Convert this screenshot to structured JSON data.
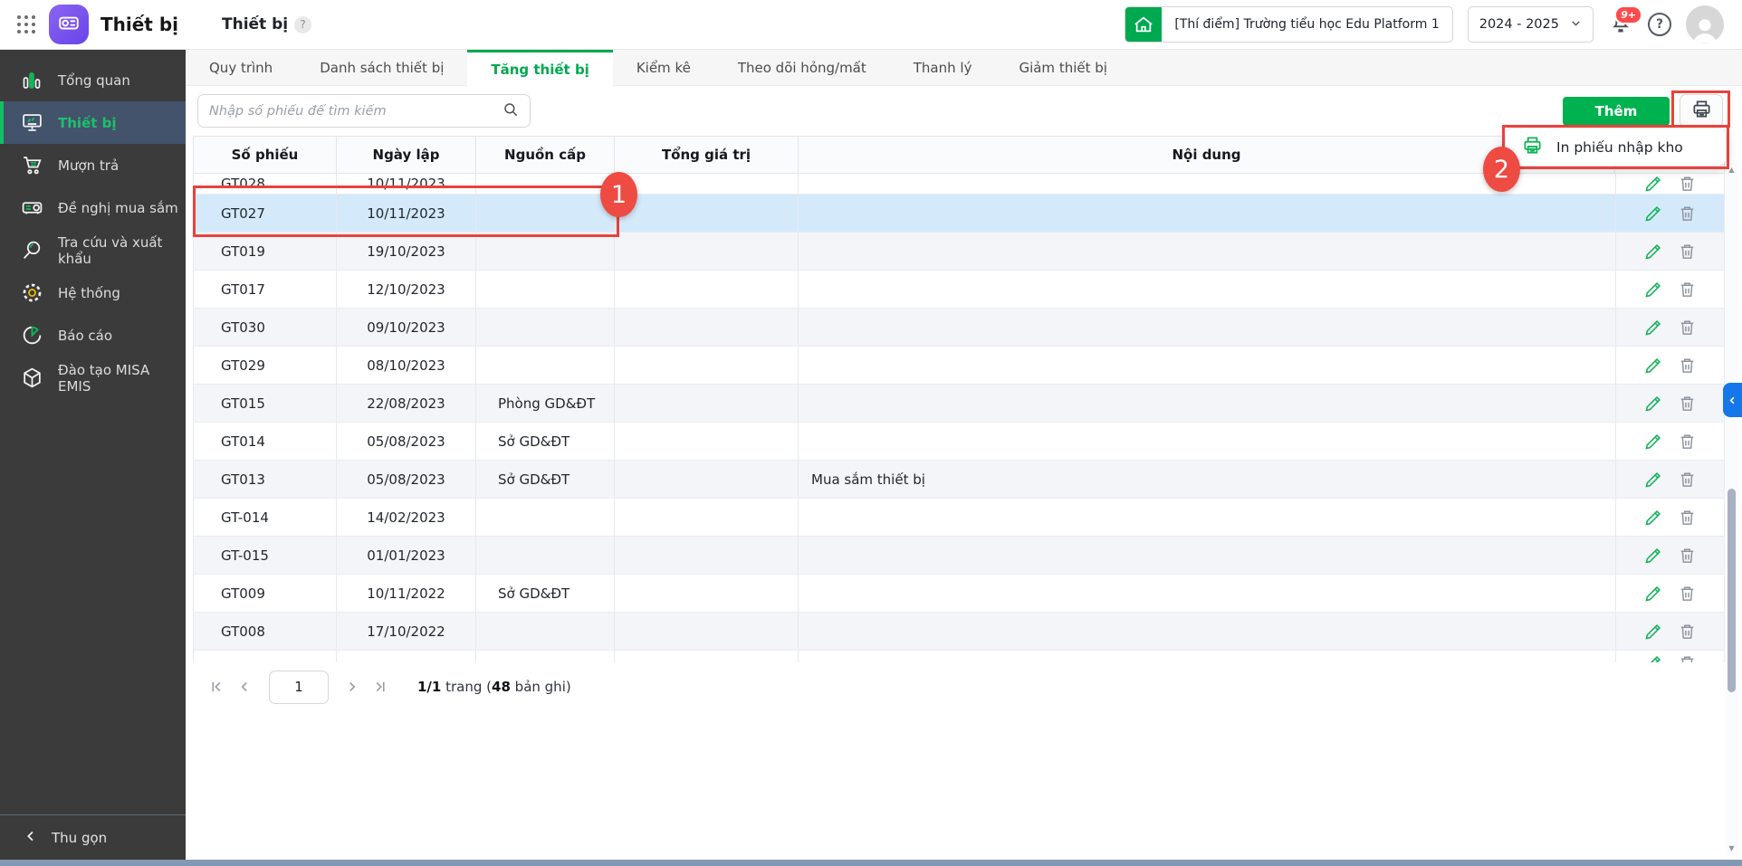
{
  "header": {
    "app_title": "Thiết bị",
    "page_title": "Thiết bị",
    "help_badge": "?",
    "school": "[Thí điểm] Trường tiểu học Edu Platform 1",
    "school_year": "2024 - 2025",
    "notification_badge": "9+",
    "help_icon_glyph": "?"
  },
  "sidebar": {
    "items": [
      {
        "label": "Tổng quan",
        "icon": "bar-chart-icon"
      },
      {
        "label": "Thiết bị",
        "icon": "monitor-icon"
      },
      {
        "label": "Mượn trả",
        "icon": "cart-icon"
      },
      {
        "label": "Đề nghị mua sắm",
        "icon": "projector-icon"
      },
      {
        "label": "Tra cứu và xuất khẩu",
        "icon": "magnifier-icon"
      },
      {
        "label": "Hệ thống",
        "icon": "gear-icon"
      },
      {
        "label": "Báo cáo",
        "icon": "pie-chart-icon"
      },
      {
        "label": "Đào tạo MISA EMIS",
        "icon": "cube-icon"
      }
    ],
    "active_item": "Thiết bị",
    "collapse_label": "Thu gọn"
  },
  "tabs": {
    "items": [
      "Quy trình",
      "Danh sách thiết bị",
      "Tăng thiết bị",
      "Kiểm kê",
      "Theo dõi hỏng/mất",
      "Thanh lý",
      "Giảm thiết bị"
    ],
    "active": "Tăng thiết bị"
  },
  "toolbar": {
    "search_placeholder": "Nhập số phiếu để tìm kiếm",
    "add_label": "Thêm",
    "print_menu_label": "In phiếu nhập kho"
  },
  "table": {
    "columns": [
      "Số phiếu",
      "Ngày lập",
      "Nguồn cấp",
      "Tổng giá trị",
      "Nội dung"
    ],
    "highlighted_row": "GT027",
    "rows": [
      {
        "code": "GT028",
        "date": "10/11/2023",
        "source": "",
        "total": "",
        "content": ""
      },
      {
        "code": "GT027",
        "date": "10/11/2023",
        "source": "",
        "total": "",
        "content": ""
      },
      {
        "code": "GT019",
        "date": "19/10/2023",
        "source": "",
        "total": "",
        "content": ""
      },
      {
        "code": "GT017",
        "date": "12/10/2023",
        "source": "",
        "total": "",
        "content": ""
      },
      {
        "code": "GT030",
        "date": "09/10/2023",
        "source": "",
        "total": "",
        "content": ""
      },
      {
        "code": "GT029",
        "date": "08/10/2023",
        "source": "",
        "total": "",
        "content": ""
      },
      {
        "code": "GT015",
        "date": "22/08/2023",
        "source": "Phòng GD&ĐT",
        "total": "",
        "content": ""
      },
      {
        "code": "GT014",
        "date": "05/08/2023",
        "source": "Sở GD&ĐT",
        "total": "",
        "content": ""
      },
      {
        "code": "GT013",
        "date": "05/08/2023",
        "source": "Sở GD&ĐT",
        "total": "",
        "content": "Mua sắm thiết bị"
      },
      {
        "code": "GT-014",
        "date": "14/02/2023",
        "source": "",
        "total": "",
        "content": ""
      },
      {
        "code": "GT-015",
        "date": "01/01/2023",
        "source": "",
        "total": "",
        "content": ""
      },
      {
        "code": "GT009",
        "date": "10/11/2022",
        "source": "Sở GD&ĐT",
        "total": "",
        "content": ""
      },
      {
        "code": "GT008",
        "date": "17/10/2022",
        "source": "",
        "total": "",
        "content": ""
      }
    ]
  },
  "annotations": {
    "step1": "1",
    "step2": "2"
  },
  "pagination": {
    "page": "1",
    "summary_bold1": "1/1",
    "summary_mid": " trang (",
    "summary_bold2": "48",
    "summary_end": " bản ghi)"
  },
  "colors": {
    "accent_green": "#00A850",
    "button_green": "#00B14F",
    "annotation_red": "#EE4B42",
    "highlight_row": "#D4EAFB",
    "sidebar_bg": "#3B3B3B",
    "sidebar_active_bg": "#42536B",
    "flag_blue": "#1677EB"
  }
}
